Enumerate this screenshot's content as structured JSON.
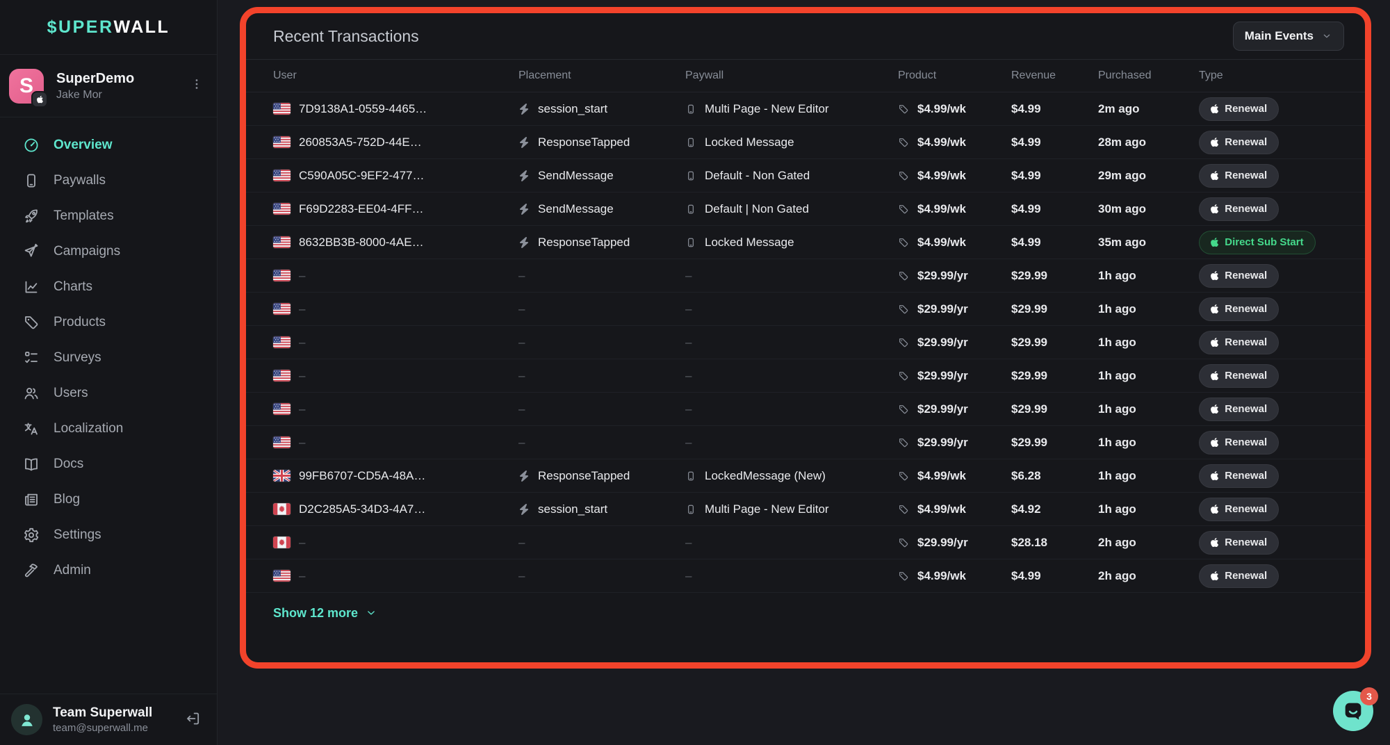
{
  "sidebar": {
    "logo": {
      "accent": "$UPER",
      "rest": "WALL"
    },
    "profile": {
      "app_initial": "S",
      "name": "SuperDemo",
      "owner": "Jake Mor"
    },
    "nav": [
      {
        "label": "Overview",
        "icon": "gauge",
        "active": true
      },
      {
        "label": "Paywalls",
        "icon": "phone",
        "active": false
      },
      {
        "label": "Templates",
        "icon": "rocket",
        "active": false
      },
      {
        "label": "Campaigns",
        "icon": "send",
        "active": false
      },
      {
        "label": "Charts",
        "icon": "chart",
        "active": false
      },
      {
        "label": "Products",
        "icon": "tag",
        "active": false
      },
      {
        "label": "Surveys",
        "icon": "checklist",
        "active": false
      },
      {
        "label": "Users",
        "icon": "users",
        "active": false
      },
      {
        "label": "Localization",
        "icon": "translate",
        "active": false
      },
      {
        "label": "Docs",
        "icon": "book",
        "active": false
      },
      {
        "label": "Blog",
        "icon": "newspaper",
        "active": false
      },
      {
        "label": "Settings",
        "icon": "gear",
        "active": false
      },
      {
        "label": "Admin",
        "icon": "hammer",
        "active": false
      }
    ],
    "footer": {
      "team_name": "Team Superwall",
      "team_email": "team@superwall.me"
    }
  },
  "panel": {
    "title": "Recent Transactions",
    "filter_button": "Main Events",
    "columns": [
      "User",
      "Placement",
      "Paywall",
      "Product",
      "Revenue",
      "Purchased",
      "Type"
    ],
    "show_more": "Show 12 more",
    "rows": [
      {
        "flag": "us",
        "user": "7D9138A1-0559-4465…",
        "placement": "session_start",
        "paywall": "Multi Page - New Editor",
        "product": "$4.99/wk",
        "revenue": "$4.99",
        "purchased": "2m ago",
        "type": "Renewal",
        "type_variant": "default"
      },
      {
        "flag": "us",
        "user": "260853A5-752D-44E…",
        "placement": "ResponseTapped",
        "paywall": "Locked Message",
        "product": "$4.99/wk",
        "revenue": "$4.99",
        "purchased": "28m ago",
        "type": "Renewal",
        "type_variant": "default"
      },
      {
        "flag": "us",
        "user": "C590A05C-9EF2-477…",
        "placement": "SendMessage",
        "paywall": "Default - Non Gated",
        "product": "$4.99/wk",
        "revenue": "$4.99",
        "purchased": "29m ago",
        "type": "Renewal",
        "type_variant": "default"
      },
      {
        "flag": "us",
        "user": "F69D2283-EE04-4FF…",
        "placement": "SendMessage",
        "paywall": "Default | Non Gated",
        "product": "$4.99/wk",
        "revenue": "$4.99",
        "purchased": "30m ago",
        "type": "Renewal",
        "type_variant": "default"
      },
      {
        "flag": "us",
        "user": "8632BB3B-8000-4AE…",
        "placement": "ResponseTapped",
        "paywall": "Locked Message",
        "product": "$4.99/wk",
        "revenue": "$4.99",
        "purchased": "35m ago",
        "type": "Direct Sub Start",
        "type_variant": "success"
      },
      {
        "flag": "us",
        "user": "–",
        "placement": "–",
        "paywall": "–",
        "product": "$29.99/yr",
        "revenue": "$29.99",
        "purchased": "1h ago",
        "type": "Renewal",
        "type_variant": "default"
      },
      {
        "flag": "us",
        "user": "–",
        "placement": "–",
        "paywall": "–",
        "product": "$29.99/yr",
        "revenue": "$29.99",
        "purchased": "1h ago",
        "type": "Renewal",
        "type_variant": "default"
      },
      {
        "flag": "us",
        "user": "–",
        "placement": "–",
        "paywall": "–",
        "product": "$29.99/yr",
        "revenue": "$29.99",
        "purchased": "1h ago",
        "type": "Renewal",
        "type_variant": "default"
      },
      {
        "flag": "us",
        "user": "–",
        "placement": "–",
        "paywall": "–",
        "product": "$29.99/yr",
        "revenue": "$29.99",
        "purchased": "1h ago",
        "type": "Renewal",
        "type_variant": "default"
      },
      {
        "flag": "us",
        "user": "–",
        "placement": "–",
        "paywall": "–",
        "product": "$29.99/yr",
        "revenue": "$29.99",
        "purchased": "1h ago",
        "type": "Renewal",
        "type_variant": "default"
      },
      {
        "flag": "us",
        "user": "–",
        "placement": "–",
        "paywall": "–",
        "product": "$29.99/yr",
        "revenue": "$29.99",
        "purchased": "1h ago",
        "type": "Renewal",
        "type_variant": "default"
      },
      {
        "flag": "gb",
        "user": "99FB6707-CD5A-48A…",
        "placement": "ResponseTapped",
        "paywall": "LockedMessage (New)",
        "product": "$4.99/wk",
        "revenue": "$6.28",
        "purchased": "1h ago",
        "type": "Renewal",
        "type_variant": "default"
      },
      {
        "flag": "ca",
        "user": "D2C285A5-34D3-4A7…",
        "placement": "session_start",
        "paywall": "Multi Page - New Editor",
        "product": "$4.99/wk",
        "revenue": "$4.92",
        "purchased": "1h ago",
        "type": "Renewal",
        "type_variant": "default"
      },
      {
        "flag": "ca",
        "user": "–",
        "placement": "–",
        "paywall": "–",
        "product": "$29.99/yr",
        "revenue": "$28.18",
        "purchased": "2h ago",
        "type": "Renewal",
        "type_variant": "default"
      },
      {
        "flag": "us",
        "user": "–",
        "placement": "–",
        "paywall": "–",
        "product": "$4.99/wk",
        "revenue": "$4.99",
        "purchased": "2h ago",
        "type": "Renewal",
        "type_variant": "default"
      }
    ]
  },
  "chat": {
    "badge": "3"
  },
  "colors": {
    "accent_teal": "#5EE6CD",
    "highlight_border_red": "#F2432B",
    "success_green": "#45D98B",
    "brand_pink": "#EC6890",
    "notification_red": "#E4584A",
    "panel_bg": "#16171B",
    "sidebar_bg": "#15161A"
  }
}
